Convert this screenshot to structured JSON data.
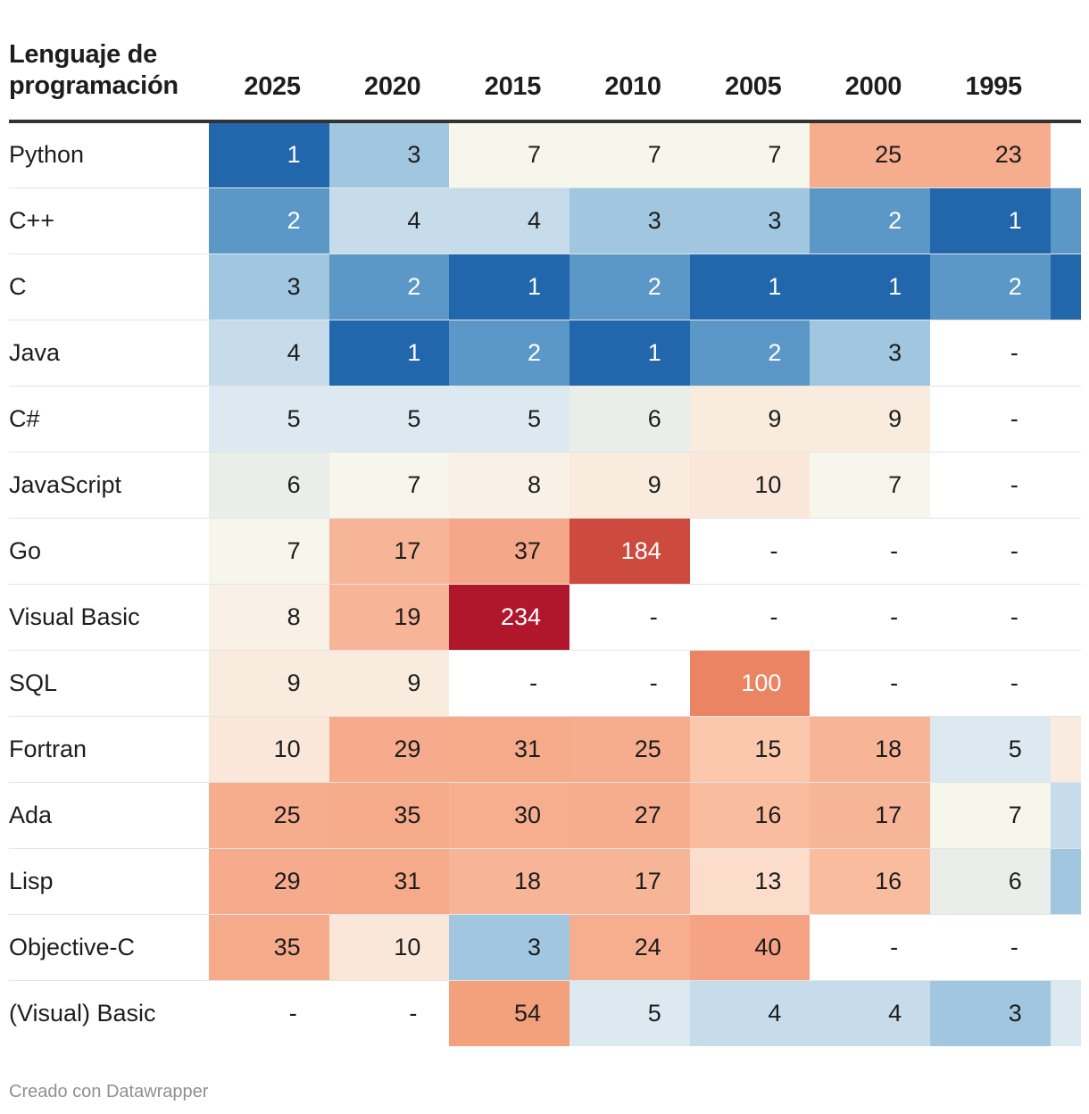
{
  "chart_data": {
    "type": "table",
    "header": {
      "language": "Lenguaje de programación",
      "years": [
        "2025",
        "2020",
        "2015",
        "2010",
        "2005",
        "2000",
        "1995"
      ]
    },
    "rows": [
      {
        "language": "Python",
        "ranks": [
          "1",
          "3",
          "7",
          "7",
          "7",
          "25",
          "23"
        ],
        "extra_color": "#ffffff"
      },
      {
        "language": "C++",
        "ranks": [
          "2",
          "4",
          "4",
          "3",
          "3",
          "2",
          "1"
        ],
        "extra_color": "#5b97c7"
      },
      {
        "language": "C",
        "ranks": [
          "3",
          "2",
          "1",
          "2",
          "1",
          "1",
          "2"
        ],
        "extra_color": "#2266ab"
      },
      {
        "language": "Java",
        "ranks": [
          "4",
          "1",
          "2",
          "1",
          "2",
          "3",
          "-"
        ],
        "extra_color": "#ffffff"
      },
      {
        "language": "C#",
        "ranks": [
          "5",
          "5",
          "5",
          "6",
          "9",
          "9",
          "-"
        ],
        "extra_color": "#ffffff"
      },
      {
        "language": "JavaScript",
        "ranks": [
          "6",
          "7",
          "8",
          "9",
          "10",
          "7",
          "-"
        ],
        "extra_color": "#ffffff"
      },
      {
        "language": "Go",
        "ranks": [
          "7",
          "17",
          "37",
          "184",
          "-",
          "-",
          "-"
        ],
        "extra_color": "#ffffff"
      },
      {
        "language": "Visual Basic",
        "ranks": [
          "8",
          "19",
          "234",
          "-",
          "-",
          "-",
          "-"
        ],
        "extra_color": "#ffffff"
      },
      {
        "language": "SQL",
        "ranks": [
          "9",
          "9",
          "-",
          "-",
          "100",
          "-",
          "-"
        ],
        "extra_color": "#ffffff"
      },
      {
        "language": "Fortran",
        "ranks": [
          "10",
          "29",
          "31",
          "25",
          "15",
          "18",
          "5"
        ],
        "extra_color": "#f9ecde"
      },
      {
        "language": "Ada",
        "ranks": [
          "25",
          "35",
          "30",
          "27",
          "16",
          "17",
          "7"
        ],
        "extra_color": "#c6dceb"
      },
      {
        "language": "Lisp",
        "ranks": [
          "29",
          "31",
          "18",
          "17",
          "13",
          "16",
          "6"
        ],
        "extra_color": "#a1c7e0"
      },
      {
        "language": "Objective-C",
        "ranks": [
          "35",
          "10",
          "3",
          "24",
          "40",
          "-",
          "-"
        ],
        "extra_color": "#ffffff"
      },
      {
        "language": "(Visual) Basic",
        "ranks": [
          "-",
          "-",
          "54",
          "5",
          "4",
          "4",
          "3"
        ],
        "extra_color": "#dce9f0"
      }
    ],
    "color_scale": {
      "1": "#2266ab",
      "2": "#5b97c7",
      "3": "#a1c7e0",
      "4": "#c6dceb",
      "5": "#dce9f0",
      "6": "#e9eeea",
      "7": "#f7f6ec",
      "8": "#f9f1e6",
      "9": "#f9ecde",
      "10": "#fae7da",
      "13": "#fcdccb",
      "15": "#fbc8ad",
      "16": "#f9bc9e",
      "17": "#f7b597",
      "18": "#f7b496",
      "19": "#f7b496",
      "23": "#f6ad8e",
      "24": "#f6ae8f",
      "25": "#f6ad8e",
      "27": "#f6ad8e",
      "29": "#f6ab8c",
      "30": "#f6ae8f",
      "31": "#f5aa8a",
      "35": "#f5aa8a",
      "37": "#f5a789",
      "40": "#f5a384",
      "54": "#f3a07c",
      "100": "#ea8462",
      "184": "#cd4a3e",
      "234": "#b0172c",
      "-": "#ffffff"
    },
    "light_text_values": [
      "1",
      "2",
      "184",
      "234",
      "100"
    ]
  },
  "footer": {
    "credit": "Creado con Datawrapper"
  }
}
